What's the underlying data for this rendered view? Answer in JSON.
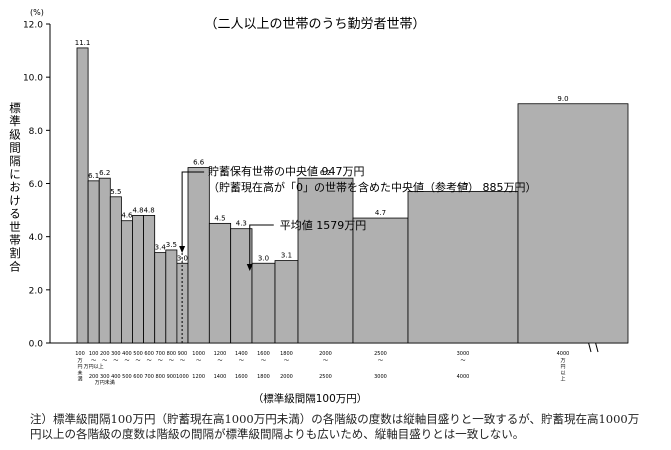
{
  "chart_data": {
    "type": "histogram",
    "title": "（二人以上の世帯のうち勤労者世帯）",
    "y_unit": "(%)",
    "ylabel": "標準級間隔における世帯割合",
    "xlabel": "（標準級間隔100万円）",
    "ylim": [
      0,
      12
    ],
    "yticks": [
      "0.0",
      "2.0",
      "4.0",
      "6.0",
      "8.0",
      "10.0",
      "12.0"
    ],
    "grid": false,
    "axis_break": "between 4000 and 9.0 bar",
    "bar_color": "#b0b0b0",
    "bins": [
      {
        "from": 0,
        "to": 100,
        "value": 11.1,
        "label": "11.1"
      },
      {
        "from": 100,
        "to": 200,
        "value": 6.1,
        "label": "6.1"
      },
      {
        "from": 200,
        "to": 300,
        "value": 6.2,
        "label": "6.2"
      },
      {
        "from": 300,
        "to": 400,
        "value": 5.5,
        "label": "5.5"
      },
      {
        "from": 400,
        "to": 500,
        "value": 4.6,
        "label": "4.6"
      },
      {
        "from": 500,
        "to": 600,
        "value": 4.8,
        "label": "4.8"
      },
      {
        "from": 600,
        "to": 700,
        "value": 4.8,
        "label": "4.8"
      },
      {
        "from": 700,
        "to": 800,
        "value": 3.4,
        "label": "3.4"
      },
      {
        "from": 800,
        "to": 900,
        "value": 3.5,
        "label": "3.5"
      },
      {
        "from": 900,
        "to": 1000,
        "value": 3.0,
        "label": "3.0"
      },
      {
        "from": 1000,
        "to": 1200,
        "value": 6.6,
        "label": "6.6"
      },
      {
        "from": 1200,
        "to": 1400,
        "value": 4.5,
        "label": "4.5"
      },
      {
        "from": 1400,
        "to": 1600,
        "value": 4.3,
        "label": "4.3"
      },
      {
        "from": 1600,
        "to": 1800,
        "value": 3.0,
        "label": "3.0"
      },
      {
        "from": 1800,
        "to": 2000,
        "value": 3.1,
        "label": "3.1"
      },
      {
        "from": 2000,
        "to": 2500,
        "value": 6.2,
        "label": "6.2"
      },
      {
        "from": 2500,
        "to": 3000,
        "value": 4.7,
        "label": "4.7"
      },
      {
        "from": 3000,
        "to": 4000,
        "value": 5.7,
        "label": "5.7"
      },
      {
        "from": 4000,
        "to": null,
        "value": 9.0,
        "label": "9.0"
      }
    ],
    "x_tick_labels": [
      {
        "top": "100",
        "mid": "万\n円\n未\n満",
        "bottom": ""
      },
      {
        "top": "100",
        "mid": "〜\n万円以上",
        "bottom": "200"
      },
      {
        "top": "200",
        "mid": "〜",
        "bottom": "300\n万円未満"
      },
      {
        "top": "300",
        "mid": "〜",
        "bottom": "400"
      },
      {
        "top": "400",
        "mid": "〜",
        "bottom": "500"
      },
      {
        "top": "500",
        "mid": "〜",
        "bottom": "600"
      },
      {
        "top": "600",
        "mid": "〜",
        "bottom": "700"
      },
      {
        "top": "700",
        "mid": "〜",
        "bottom": "800"
      },
      {
        "top": "800",
        "mid": "〜",
        "bottom": "900"
      },
      {
        "top": "900",
        "mid": "〜",
        "bottom": "1000"
      },
      {
        "top": "1000",
        "mid": "〜",
        "bottom": "1200"
      },
      {
        "top": "1200",
        "mid": "〜",
        "bottom": "1400"
      },
      {
        "top": "1400",
        "mid": "〜",
        "bottom": "1600"
      },
      {
        "top": "1600",
        "mid": "〜",
        "bottom": "1800"
      },
      {
        "top": "1800",
        "mid": "〜",
        "bottom": "2000"
      },
      {
        "top": "2000",
        "mid": "〜",
        "bottom": "2500"
      },
      {
        "top": "2500",
        "mid": "〜",
        "bottom": "3000"
      },
      {
        "top": "3000",
        "mid": "〜",
        "bottom": "4000"
      },
      {
        "top": "4000",
        "mid": "万\n円\n以\n上",
        "bottom": ""
      }
    ],
    "annotations": [
      {
        "name": "median",
        "lines": [
          "貯蓄保有世帯の中央値 947万円",
          "（貯蓄現在高が「0」の世帯を含めた中央値（参考値） 885万円）"
        ],
        "x": 947
      },
      {
        "name": "mean",
        "lines": [
          "平均値 1579万円"
        ],
        "x": 1579
      }
    ]
  },
  "note": "注）標準級間隔100万円（貯蓄現在高1000万円未満）の各階級の度数は縦軸目盛りと一致するが、貯蓄現在高1000万円以上の各階級の度数は階級の間隔が標準級間隔よりも広いため、縦軸目盛りとは一致しない。"
}
